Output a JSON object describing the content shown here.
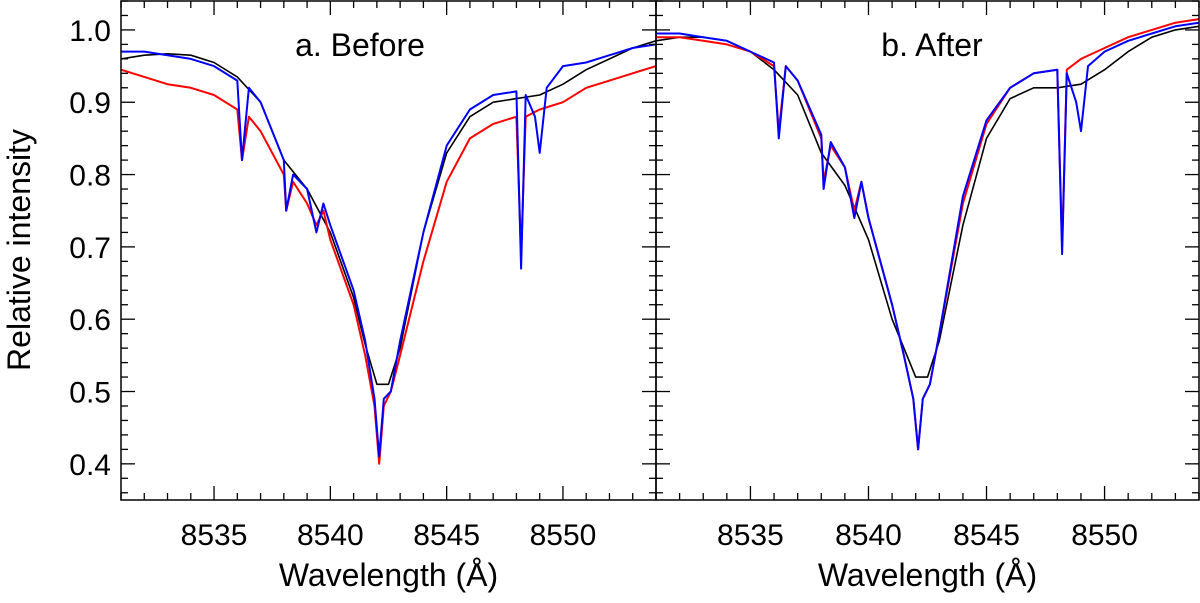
{
  "chart_data": [
    {
      "type": "line",
      "title": "a. Before",
      "xlabel": "Wavelength (Å)",
      "ylabel": "Relative intensity",
      "xlim": [
        8531,
        8554
      ],
      "ylim": [
        0.35,
        1.04
      ],
      "xticks": [
        8535,
        8540,
        8545,
        8550
      ],
      "yticks": [
        0.4,
        0.5,
        0.6,
        0.7,
        0.8,
        0.9,
        1.0
      ],
      "grid": false,
      "series": [
        {
          "color": "#000000",
          "x": [
            8531,
            8532,
            8533,
            8534,
            8535,
            8536,
            8537,
            8537.5,
            8538,
            8539,
            8540,
            8541,
            8541.5,
            8542,
            8542.5,
            8543,
            8544,
            8545,
            8546,
            8547,
            8548,
            8549,
            8550,
            8551,
            8552,
            8553,
            8554
          ],
          "y": [
            0.96,
            0.965,
            0.967,
            0.965,
            0.955,
            0.935,
            0.9,
            0.86,
            0.82,
            0.78,
            0.72,
            0.63,
            0.565,
            0.51,
            0.51,
            0.56,
            0.72,
            0.83,
            0.88,
            0.9,
            0.905,
            0.91,
            0.925,
            0.945,
            0.96,
            0.975,
            0.985
          ]
        },
        {
          "color": "#ff0000",
          "x": [
            8531,
            8532,
            8533,
            8534,
            8535,
            8536,
            8536.2,
            8536.5,
            8537,
            8538,
            8538.1,
            8538.4,
            8539,
            8539.4,
            8539.7,
            8540,
            8541,
            8541.5,
            8541.9,
            8542.1,
            8542.3,
            8542.6,
            8543,
            8544,
            8545,
            8546,
            8547,
            8548,
            8548.2,
            8548.4,
            8549,
            8550,
            8551,
            8552,
            8553,
            8554
          ],
          "y": [
            0.945,
            0.935,
            0.925,
            0.92,
            0.91,
            0.89,
            0.82,
            0.88,
            0.86,
            0.8,
            0.75,
            0.79,
            0.76,
            0.73,
            0.75,
            0.71,
            0.62,
            0.55,
            0.48,
            0.4,
            0.48,
            0.5,
            0.55,
            0.68,
            0.79,
            0.85,
            0.87,
            0.88,
            0.69,
            0.88,
            0.89,
            0.9,
            0.92,
            0.93,
            0.94,
            0.95
          ]
        },
        {
          "color": "#0000ff",
          "x": [
            8531,
            8532,
            8533,
            8534,
            8535,
            8536,
            8536.2,
            8536.5,
            8537,
            8538,
            8538.1,
            8538.4,
            8539,
            8539.4,
            8539.7,
            8540,
            8541,
            8541.5,
            8541.9,
            8542.1,
            8542.3,
            8542.6,
            8543,
            8544,
            8545,
            8546,
            8547,
            8548,
            8548.2,
            8548.4,
            8548.8,
            8549,
            8549.3,
            8550,
            8551,
            8552,
            8553,
            8554
          ],
          "y": [
            0.97,
            0.97,
            0.965,
            0.96,
            0.95,
            0.93,
            0.82,
            0.92,
            0.9,
            0.82,
            0.75,
            0.8,
            0.78,
            0.72,
            0.76,
            0.73,
            0.64,
            0.57,
            0.49,
            0.41,
            0.49,
            0.5,
            0.57,
            0.72,
            0.84,
            0.89,
            0.91,
            0.915,
            0.67,
            0.91,
            0.88,
            0.83,
            0.92,
            0.95,
            0.955,
            0.965,
            0.975,
            0.98
          ]
        }
      ]
    },
    {
      "type": "line",
      "title": "b. After",
      "xlabel": "Wavelength (Å)",
      "ylabel": "",
      "xlim": [
        8531,
        8554
      ],
      "ylim": [
        0.35,
        1.04
      ],
      "xticks": [
        8535,
        8540,
        8545,
        8550
      ],
      "yticks": [
        0.4,
        0.5,
        0.6,
        0.7,
        0.8,
        0.9,
        1.0
      ],
      "grid": false,
      "series": [
        {
          "color": "#000000",
          "x": [
            8531,
            8532,
            8533,
            8534,
            8535,
            8536,
            8537,
            8537.5,
            8538,
            8539,
            8540,
            8541,
            8541.5,
            8542,
            8542.5,
            8543,
            8544,
            8545,
            8546,
            8547,
            8548,
            8549,
            8550,
            8551,
            8552,
            8553,
            8554
          ],
          "y": [
            0.985,
            0.99,
            0.99,
            0.985,
            0.97,
            0.945,
            0.91,
            0.87,
            0.83,
            0.785,
            0.71,
            0.6,
            0.56,
            0.52,
            0.52,
            0.57,
            0.73,
            0.85,
            0.905,
            0.92,
            0.92,
            0.925,
            0.945,
            0.97,
            0.99,
            1.0,
            1.005
          ]
        },
        {
          "color": "#ff0000",
          "x": [
            8531,
            8532,
            8533,
            8534,
            8535,
            8536,
            8536.2,
            8536.5,
            8537,
            8538,
            8538.1,
            8538.4,
            8539,
            8539.4,
            8539.7,
            8540,
            8541,
            8541.5,
            8541.9,
            8542.1,
            8542.3,
            8542.6,
            8543,
            8544,
            8545,
            8546,
            8547,
            8548,
            8548.2,
            8548.4,
            8549,
            8550,
            8551,
            8552,
            8553,
            8554
          ],
          "y": [
            0.99,
            0.99,
            0.985,
            0.98,
            0.97,
            0.95,
            0.86,
            0.95,
            0.93,
            0.85,
            0.79,
            0.84,
            0.81,
            0.75,
            0.79,
            0.74,
            0.62,
            0.55,
            0.49,
            0.42,
            0.49,
            0.51,
            0.58,
            0.76,
            0.87,
            0.92,
            0.94,
            0.945,
            0.7,
            0.945,
            0.96,
            0.975,
            0.99,
            1.0,
            1.01,
            1.015
          ]
        },
        {
          "color": "#0000ff",
          "x": [
            8531,
            8532,
            8533,
            8534,
            8535,
            8536,
            8536.2,
            8536.5,
            8537,
            8538,
            8538.1,
            8538.4,
            8539,
            8539.4,
            8539.7,
            8540,
            8541,
            8541.5,
            8541.9,
            8542.1,
            8542.3,
            8542.6,
            8543,
            8544,
            8545,
            8546,
            8547,
            8548,
            8548.2,
            8548.4,
            8548.8,
            8549,
            8549.3,
            8550,
            8551,
            8552,
            8553,
            8554
          ],
          "y": [
            0.995,
            0.995,
            0.99,
            0.985,
            0.97,
            0.955,
            0.85,
            0.95,
            0.93,
            0.855,
            0.78,
            0.845,
            0.81,
            0.74,
            0.79,
            0.74,
            0.62,
            0.55,
            0.49,
            0.42,
            0.49,
            0.51,
            0.58,
            0.77,
            0.875,
            0.92,
            0.94,
            0.945,
            0.69,
            0.94,
            0.9,
            0.86,
            0.95,
            0.97,
            0.985,
            0.995,
            1.005,
            1.01
          ]
        }
      ]
    }
  ]
}
